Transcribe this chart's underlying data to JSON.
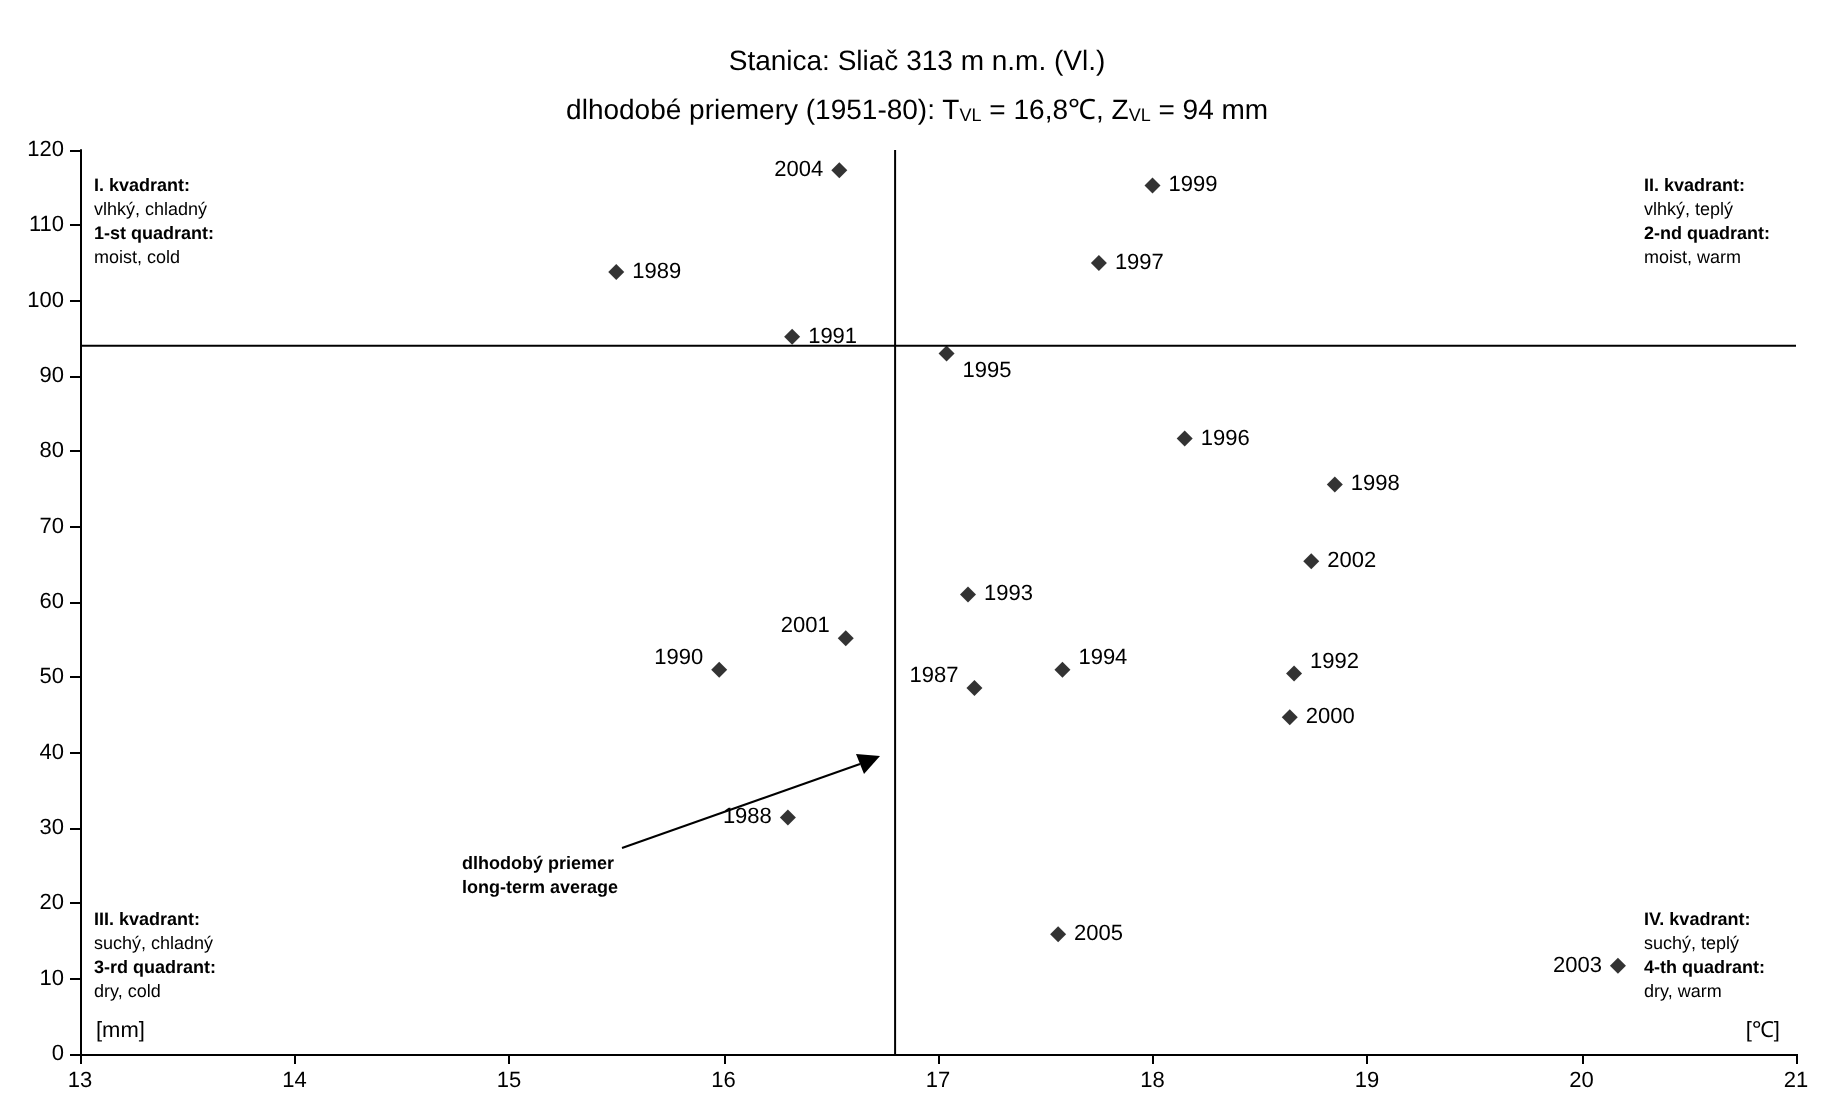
{
  "chart_data": {
    "type": "scatter",
    "title": "Stanica: Sliač 313 m n.m. (Vl.)",
    "subtitle": "dlhodobé priemery (1951-80): T$_{VL}$ = 16,8℃, Z$_{VL}$ = 94 mm",
    "xlabel": "[℃]",
    "ylabel": "[mm]",
    "x": [
      17.17,
      16.3,
      15.5,
      15.98,
      16.32,
      18.66,
      17.14,
      17.58,
      17.04,
      18.15,
      17.75,
      18.85,
      18.0,
      18.64,
      16.57,
      18.74,
      20.17,
      16.54,
      17.56
    ],
    "values": [
      48.6,
      31.4,
      103.8,
      51.0,
      95.2,
      50.5,
      61.0,
      51.0,
      93.0,
      81.7,
      105.0,
      75.6,
      115.3,
      44.7,
      55.2,
      65.4,
      11.7,
      117.3,
      15.9
    ],
    "color": "#000000",
    "marker": "diamond",
    "grid": false,
    "xlim": [
      13,
      21
    ],
    "xticks": [
      13,
      14,
      15,
      16,
      17,
      18,
      19,
      20,
      21
    ],
    "ylim": [
      0,
      120
    ],
    "yticks": [
      0,
      10,
      20,
      30,
      40,
      50,
      60,
      70,
      80,
      90,
      100,
      110,
      120
    ],
    "ref_lines": [
      {
        "axis": "x",
        "value": 16.8
      },
      {
        "axis": "y",
        "value": 94
      }
    ],
    "annotations": [
      "I. kvadrant:\nvlhký, chladný\n1-st quadrant:\nmoist, cold",
      "II. kvadrant:\nvlhký, teplý\n2-nd quadrant:\nmoist, warm",
      "III. kvadrant:\nsuchý, chladný\n3-rd quadrant:\ndry, cold",
      "IV. kvadrant:\nsuchý, teplý\n4-th quadrant:\ndry, warm",
      "dlhodobý priemer\nlong-term average",
      {
        "text": "1987",
        "x": 17.17,
        "y": 48.6
      },
      {
        "text": "1988",
        "x": 16.3,
        "y": 31.4
      },
      {
        "text": "1989",
        "x": 15.5,
        "y": 103.8
      },
      {
        "text": "1990",
        "x": 15.98,
        "y": 51.0
      },
      {
        "text": "1991",
        "x": 16.32,
        "y": 95.2
      },
      {
        "text": "1992",
        "x": 18.66,
        "y": 50.5
      },
      {
        "text": "1993",
        "x": 17.14,
        "y": 61.0
      },
      {
        "text": "1994",
        "x": 17.58,
        "y": 51.0
      },
      {
        "text": "1995",
        "x": 17.04,
        "y": 93.0
      },
      {
        "text": "1996",
        "x": 18.15,
        "y": 81.7
      },
      {
        "text": "1997",
        "x": 17.75,
        "y": 105.0
      },
      {
        "text": "1998",
        "x": 18.85,
        "y": 75.6
      },
      {
        "text": "1999",
        "x": 18.0,
        "y": 115.3
      },
      {
        "text": "2000",
        "x": 18.64,
        "y": 44.7
      },
      {
        "text": "2001",
        "x": 16.57,
        "y": 55.2
      },
      {
        "text": "2002",
        "x": 18.74,
        "y": 65.4
      },
      {
        "text": "2003",
        "x": 20.17,
        "y": 11.7
      },
      {
        "text": "2004",
        "x": 16.54,
        "y": 117.3
      },
      {
        "text": "2005",
        "x": 17.56,
        "y": 15.9
      }
    ]
  }
}
